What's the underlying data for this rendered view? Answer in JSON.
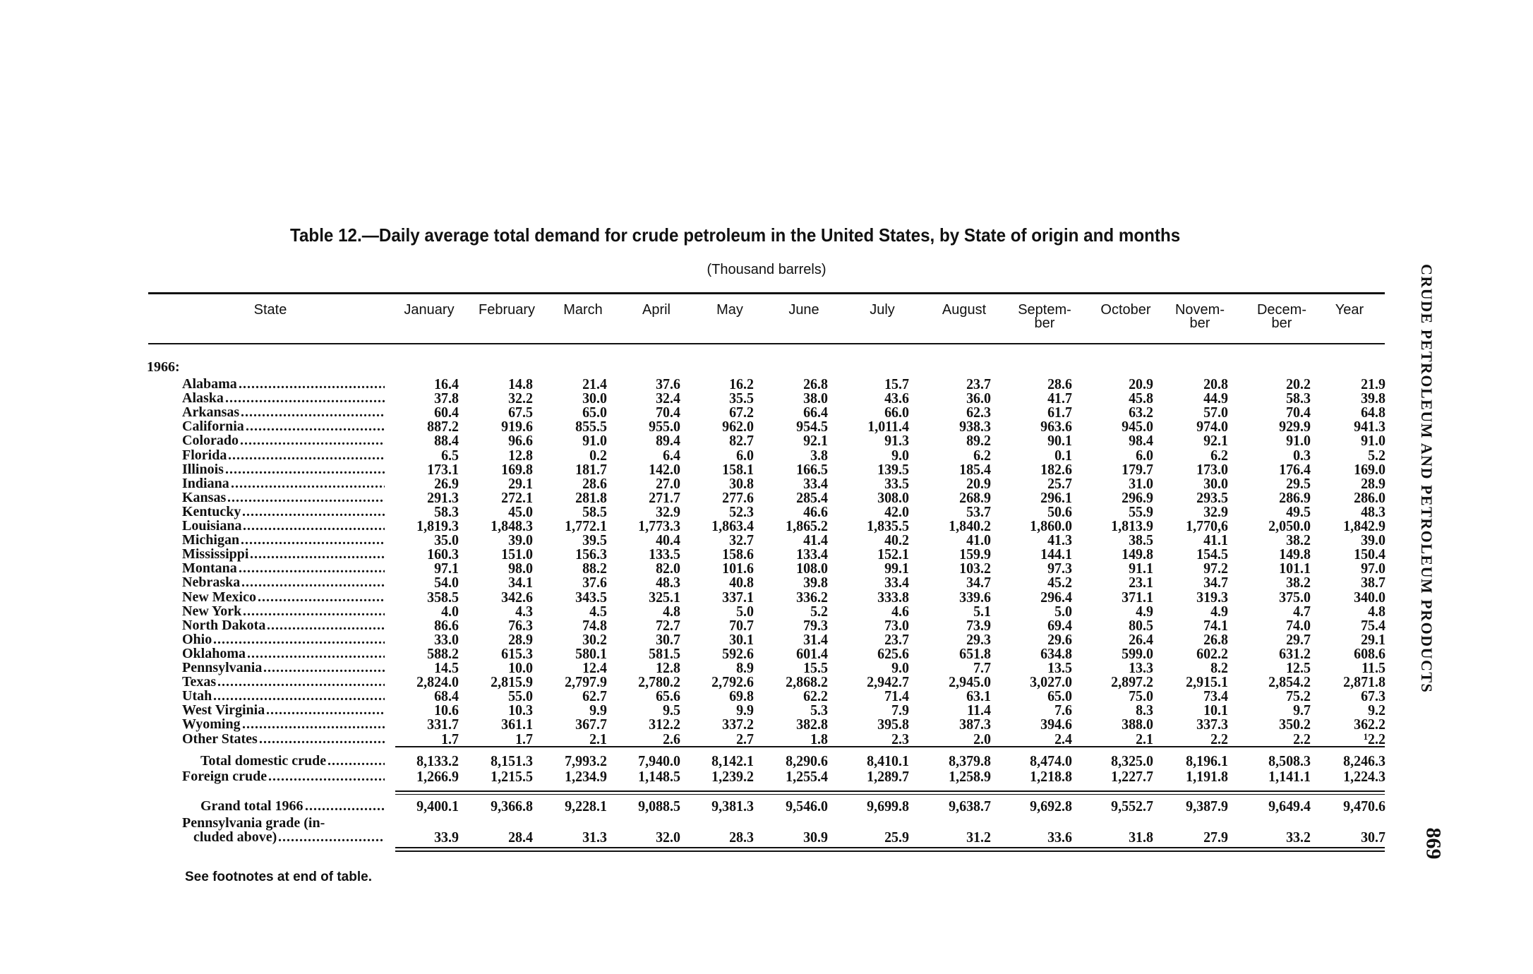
{
  "title": "Table 12.—Daily average total demand for crude petroleum in the United States, by State of origin and months",
  "subtitle": "(Thousand barrels)",
  "side_header": "CRUDE PETROLEUM AND PETROLEUM PRODUCTS",
  "page_number": "869",
  "footnote": "See footnotes at end of table.",
  "columns": [
    "State",
    "January",
    "February",
    "March",
    "April",
    "May",
    "June",
    "July",
    "August",
    "Septem-\nber",
    "October",
    "Novem-\nber",
    "Decem-\nber",
    "Year"
  ],
  "year_label": "1966:",
  "rows": [
    {
      "state": "Alabama",
      "values": [
        "16.4",
        "14.8",
        "21.4",
        "37.6",
        "16.2",
        "26.8",
        "15.7",
        "23.7",
        "28.6",
        "20.9",
        "20.8",
        "20.2",
        "21.9"
      ]
    },
    {
      "state": "Alaska",
      "values": [
        "37.8",
        "32.2",
        "30.0",
        "32.4",
        "35.5",
        "38.0",
        "43.6",
        "36.0",
        "41.7",
        "45.8",
        "44.9",
        "58.3",
        "39.8"
      ]
    },
    {
      "state": "Arkansas",
      "values": [
        "60.4",
        "67.5",
        "65.0",
        "70.4",
        "67.2",
        "66.4",
        "66.0",
        "62.3",
        "61.7",
        "63.2",
        "57.0",
        "70.4",
        "64.8"
      ]
    },
    {
      "state": "California",
      "values": [
        "887.2",
        "919.6",
        "855.5",
        "955.0",
        "962.0",
        "954.5",
        "1,011.4",
        "938.3",
        "963.6",
        "945.0",
        "974.0",
        "929.9",
        "941.3"
      ]
    },
    {
      "state": "Colorado",
      "values": [
        "88.4",
        "96.6",
        "91.0",
        "89.4",
        "82.7",
        "92.1",
        "91.3",
        "89.2",
        "90.1",
        "98.4",
        "92.1",
        "91.0",
        "91.0"
      ]
    },
    {
      "state": "Florida",
      "values": [
        "6.5",
        "12.8",
        "0.2",
        "6.4",
        "6.0",
        "3.8",
        "9.0",
        "6.2",
        "0.1",
        "6.0",
        "6.2",
        "0.3",
        "5.2"
      ]
    },
    {
      "state": "Illinois",
      "values": [
        "173.1",
        "169.8",
        "181.7",
        "142.0",
        "158.1",
        "166.5",
        "139.5",
        "185.4",
        "182.6",
        "179.7",
        "173.0",
        "176.4",
        "169.0"
      ]
    },
    {
      "state": "Indiana",
      "values": [
        "26.9",
        "29.1",
        "28.6",
        "27.0",
        "30.8",
        "33.4",
        "33.5",
        "20.9",
        "25.7",
        "31.0",
        "30.0",
        "29.5",
        "28.9"
      ]
    },
    {
      "state": "Kansas",
      "values": [
        "291.3",
        "272.1",
        "281.8",
        "271.7",
        "277.6",
        "285.4",
        "308.0",
        "268.9",
        "296.1",
        "296.9",
        "293.5",
        "286.9",
        "286.0"
      ]
    },
    {
      "state": "Kentucky",
      "values": [
        "58.3",
        "45.0",
        "58.5",
        "32.9",
        "52.3",
        "46.6",
        "42.0",
        "53.7",
        "50.6",
        "55.9",
        "32.9",
        "49.5",
        "48.3"
      ]
    },
    {
      "state": "Louisiana",
      "values": [
        "1,819.3",
        "1,848.3",
        "1,772.1",
        "1,773.3",
        "1,863.4",
        "1,865.2",
        "1,835.5",
        "1,840.2",
        "1,860.0",
        "1,813.9",
        "1,770,6",
        "2,050.0",
        "1,842.9"
      ]
    },
    {
      "state": "Michigan",
      "values": [
        "35.0",
        "39.0",
        "39.5",
        "40.4",
        "32.7",
        "41.4",
        "40.2",
        "41.0",
        "41.3",
        "38.5",
        "41.1",
        "38.2",
        "39.0"
      ]
    },
    {
      "state": "Mississippi",
      "values": [
        "160.3",
        "151.0",
        "156.3",
        "133.5",
        "158.6",
        "133.4",
        "152.1",
        "159.9",
        "144.1",
        "149.8",
        "154.5",
        "149.8",
        "150.4"
      ]
    },
    {
      "state": "Montana",
      "values": [
        "97.1",
        "98.0",
        "88.2",
        "82.0",
        "101.6",
        "108.0",
        "99.1",
        "103.2",
        "97.3",
        "91.1",
        "97.2",
        "101.1",
        "97.0"
      ]
    },
    {
      "state": "Nebraska",
      "values": [
        "54.0",
        "34.1",
        "37.6",
        "48.3",
        "40.8",
        "39.8",
        "33.4",
        "34.7",
        "45.2",
        "23.1",
        "34.7",
        "38.2",
        "38.7"
      ]
    },
    {
      "state": "New Mexico",
      "values": [
        "358.5",
        "342.6",
        "343.5",
        "325.1",
        "337.1",
        "336.2",
        "333.8",
        "339.6",
        "296.4",
        "371.1",
        "319.3",
        "375.0",
        "340.0"
      ]
    },
    {
      "state": "New York",
      "values": [
        "4.0",
        "4.3",
        "4.5",
        "4.8",
        "5.0",
        "5.2",
        "4.6",
        "5.1",
        "5.0",
        "4.9",
        "4.9",
        "4.7",
        "4.8"
      ]
    },
    {
      "state": "North Dakota",
      "values": [
        "86.6",
        "76.3",
        "74.8",
        "72.7",
        "70.7",
        "79.3",
        "73.0",
        "73.9",
        "69.4",
        "80.5",
        "74.1",
        "74.0",
        "75.4"
      ]
    },
    {
      "state": "Ohio",
      "values": [
        "33.0",
        "28.9",
        "30.2",
        "30.7",
        "30.1",
        "31.4",
        "23.7",
        "29.3",
        "29.6",
        "26.4",
        "26.8",
        "29.7",
        "29.1"
      ]
    },
    {
      "state": "Oklahoma",
      "values": [
        "588.2",
        "615.3",
        "580.1",
        "581.5",
        "592.6",
        "601.4",
        "625.6",
        "651.8",
        "634.8",
        "599.0",
        "602.2",
        "631.2",
        "608.6"
      ]
    },
    {
      "state": "Pennsylvania",
      "values": [
        "14.5",
        "10.0",
        "12.4",
        "12.8",
        "8.9",
        "15.5",
        "9.0",
        "7.7",
        "13.5",
        "13.3",
        "8.2",
        "12.5",
        "11.5"
      ]
    },
    {
      "state": "Texas",
      "values": [
        "2,824.0",
        "2,815.9",
        "2,797.9",
        "2,780.2",
        "2,792.6",
        "2,868.2",
        "2,942.7",
        "2,945.0",
        "3,027.0",
        "2,897.2",
        "2,915.1",
        "2,854.2",
        "2,871.8"
      ]
    },
    {
      "state": "Utah",
      "values": [
        "68.4",
        "55.0",
        "62.7",
        "65.6",
        "69.8",
        "62.2",
        "71.4",
        "63.1",
        "65.0",
        "75.0",
        "73.4",
        "75.2",
        "67.3"
      ]
    },
    {
      "state": "West Virginia",
      "values": [
        "10.6",
        "10.3",
        "9.9",
        "9.5",
        "9.9",
        "5.3",
        "7.9",
        "11.4",
        "7.6",
        "8.3",
        "10.1",
        "9.7",
        "9.2"
      ]
    },
    {
      "state": "Wyoming",
      "values": [
        "331.7",
        "361.1",
        "367.7",
        "312.2",
        "337.2",
        "382.8",
        "395.8",
        "387.3",
        "394.6",
        "388.0",
        "337.3",
        "350.2",
        "362.2"
      ]
    },
    {
      "state": "Other States",
      "values": [
        "1.7",
        "1.7",
        "2.1",
        "2.6",
        "2.7",
        "1.8",
        "2.3",
        "2.0",
        "2.4",
        "2.1",
        "2.2",
        "2.2",
        "¹2.2"
      ]
    }
  ],
  "totals": [
    {
      "state": "Total domestic crude",
      "values": [
        "8,133.2",
        "8,151.3",
        "7,993.2",
        "7,940.0",
        "8,142.1",
        "8,290.6",
        "8,410.1",
        "8,379.8",
        "8,474.0",
        "8,325.0",
        "8,196.1",
        "8,508.3",
        "8,246.3"
      ]
    },
    {
      "state": "Foreign crude",
      "values": [
        "1,266.9",
        "1,215.5",
        "1,234.9",
        "1,148.5",
        "1,239.2",
        "1,255.4",
        "1,289.7",
        "1,258.9",
        "1,218.8",
        "1,227.7",
        "1,191.8",
        "1,141.1",
        "1,224.3"
      ]
    }
  ],
  "grand_total": {
    "state": "Grand total 1966",
    "values": [
      "9,400.1",
      "9,366.8",
      "9,228.1",
      "9,088.5",
      "9,381.3",
      "9,546.0",
      "9,699.8",
      "9,638.7",
      "9,692.8",
      "9,552.7",
      "9,387.9",
      "9,649.4",
      "9,470.6"
    ]
  },
  "pennsylvania_grade": {
    "state_line1": "Pennsylvania grade (in-",
    "state_line2": "cluded above)",
    "values": [
      "33.9",
      "28.4",
      "31.3",
      "32.0",
      "28.3",
      "30.9",
      "25.9",
      "31.2",
      "33.6",
      "31.8",
      "27.9",
      "33.2",
      "30.7"
    ]
  }
}
